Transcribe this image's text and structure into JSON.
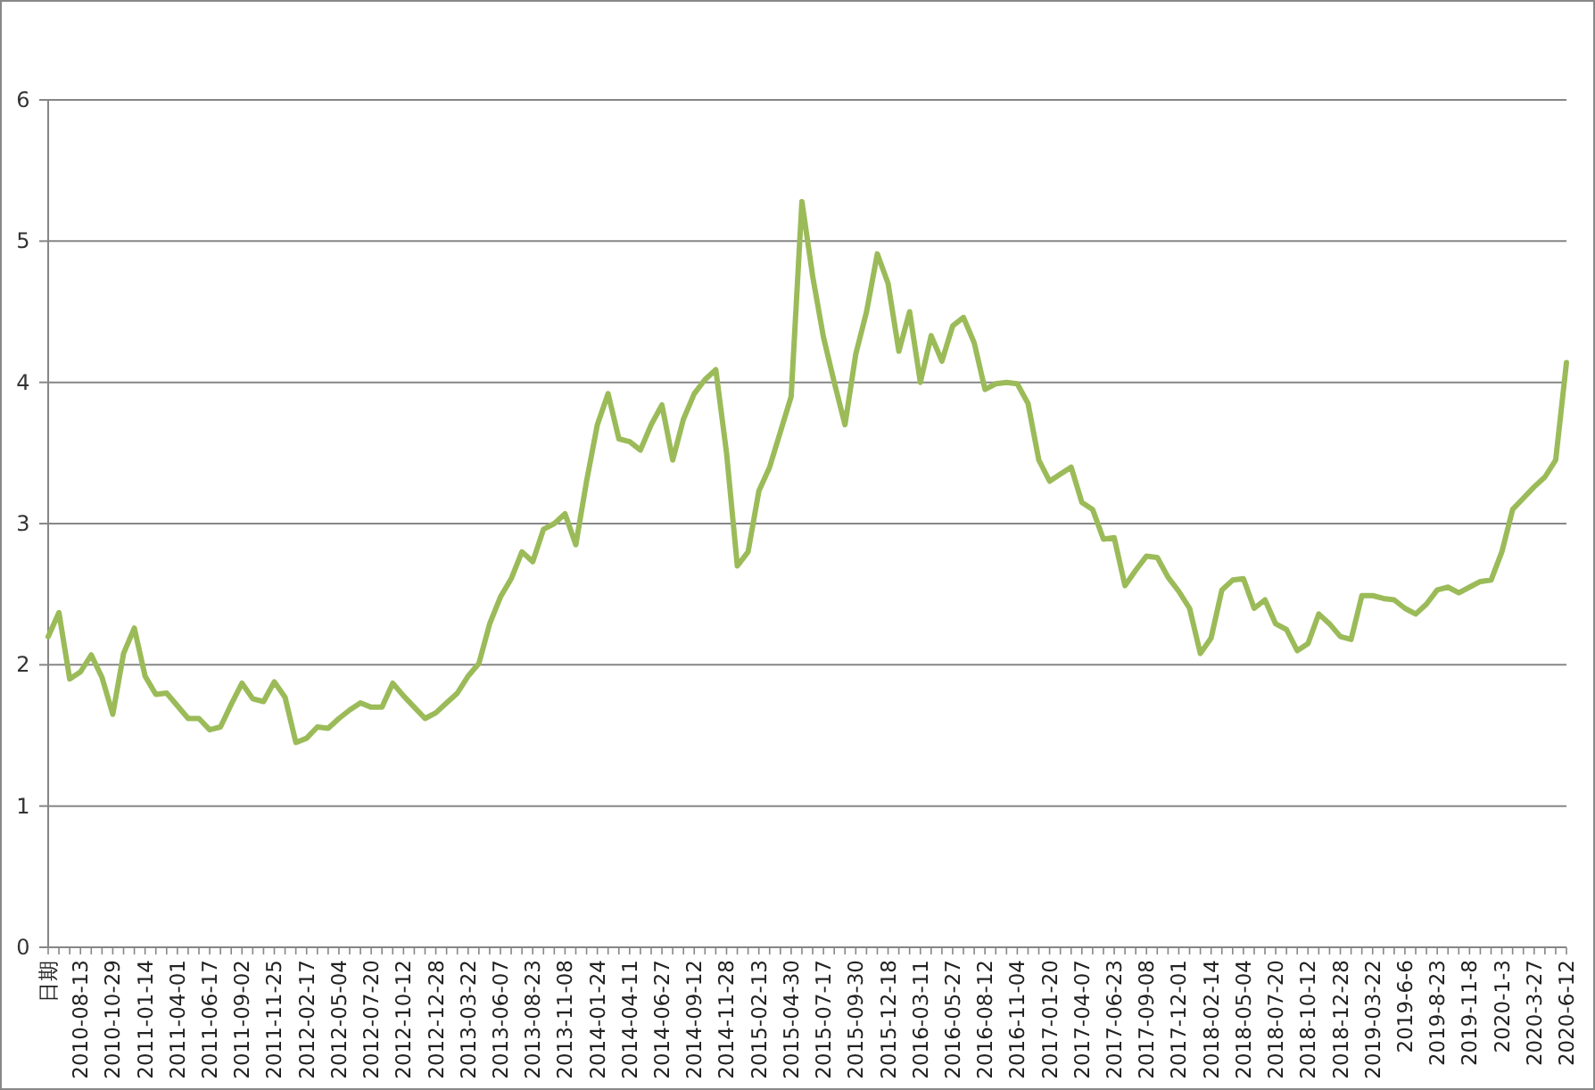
{
  "chart_data": {
    "type": "line",
    "categories": [
      "日期",
      null,
      null,
      "2010-08-13",
      null,
      null,
      "2010-10-29",
      null,
      null,
      "2011-01-14",
      null,
      null,
      "2011-04-01",
      null,
      null,
      "2011-06-17",
      null,
      null,
      "2011-09-02",
      null,
      null,
      "2011-11-25",
      null,
      null,
      "2012-02-17",
      null,
      null,
      "2012-05-04",
      null,
      null,
      "2012-07-20",
      null,
      null,
      "2012-10-12",
      null,
      null,
      "2012-12-28",
      null,
      null,
      "2013-03-22",
      null,
      null,
      "2013-06-07",
      null,
      null,
      "2013-08-23",
      null,
      null,
      "2013-11-08",
      null,
      null,
      "2014-01-24",
      null,
      null,
      "2014-04-11",
      null,
      null,
      "2014-06-27",
      null,
      null,
      "2014-09-12",
      null,
      null,
      "2014-11-28",
      null,
      null,
      "2015-02-13",
      null,
      null,
      "2015-04-30",
      null,
      null,
      "2015-07-17",
      null,
      null,
      "2015-09-30",
      null,
      null,
      "2015-12-18",
      null,
      null,
      "2016-03-11",
      null,
      null,
      "2016-05-27",
      null,
      null,
      "2016-08-12",
      null,
      null,
      "2016-11-04",
      null,
      null,
      "2017-01-20",
      null,
      null,
      "2017-04-07",
      null,
      null,
      "2017-06-23",
      null,
      null,
      "2017-09-08",
      null,
      null,
      "2017-12-01",
      null,
      null,
      "2018-02-14",
      null,
      null,
      "2018-05-04",
      null,
      null,
      "2018-07-20",
      null,
      null,
      "2018-10-12",
      null,
      null,
      "2018-12-28",
      null,
      null,
      "2019-03-22",
      null,
      null,
      "2019-6-6",
      null,
      null,
      "2019-8-23",
      null,
      null,
      "2019-11-8",
      null,
      null,
      "2020-1-3",
      null,
      null,
      "2020-3-27",
      null,
      null,
      "2020-6-12"
    ],
    "values": [
      2.2,
      2.37,
      1.9,
      1.95,
      2.07,
      1.91,
      1.65,
      2.08,
      2.26,
      1.92,
      1.79,
      1.8,
      1.71,
      1.62,
      1.62,
      1.54,
      1.56,
      1.72,
      1.87,
      1.76,
      1.74,
      1.88,
      1.77,
      1.45,
      1.48,
      1.56,
      1.55,
      1.62,
      1.68,
      1.73,
      1.7,
      1.7,
      1.87,
      1.78,
      1.7,
      1.62,
      1.66,
      1.73,
      1.8,
      1.92,
      2.01,
      2.29,
      2.48,
      2.61,
      2.8,
      2.73,
      2.96,
      3.0,
      3.07,
      2.85,
      3.3,
      3.7,
      3.92,
      3.6,
      3.58,
      3.52,
      3.7,
      3.84,
      3.45,
      3.74,
      3.92,
      4.02,
      4.09,
      3.5,
      2.7,
      2.8,
      3.23,
      3.4,
      3.65,
      3.9,
      5.28,
      4.75,
      4.32,
      4.0,
      3.7,
      4.2,
      4.5,
      4.91,
      4.7,
      4.22,
      4.5,
      4.0,
      4.33,
      4.15,
      4.4,
      4.46,
      4.28,
      3.95,
      3.99,
      4.0,
      3.99,
      3.85,
      3.45,
      3.3,
      3.35,
      3.4,
      3.15,
      3.1,
      2.89,
      2.9,
      2.56,
      2.67,
      2.77,
      2.76,
      2.62,
      2.52,
      2.4,
      2.08,
      2.19,
      2.53,
      2.6,
      2.61,
      2.4,
      2.46,
      2.29,
      2.25,
      2.1,
      2.15,
      2.36,
      2.29,
      2.2,
      2.18,
      2.49,
      2.49,
      2.47,
      2.46,
      2.4,
      2.36,
      2.43,
      2.53,
      2.55,
      2.51,
      2.55,
      2.59,
      2.6,
      2.8,
      3.1,
      3.18,
      3.26,
      3.33,
      3.45,
      4.14
    ],
    "color": "#9bbb59",
    "ylim": [
      0,
      6
    ],
    "yticks": [
      0,
      1,
      2,
      3,
      4,
      5,
      6
    ],
    "grid": "y"
  }
}
